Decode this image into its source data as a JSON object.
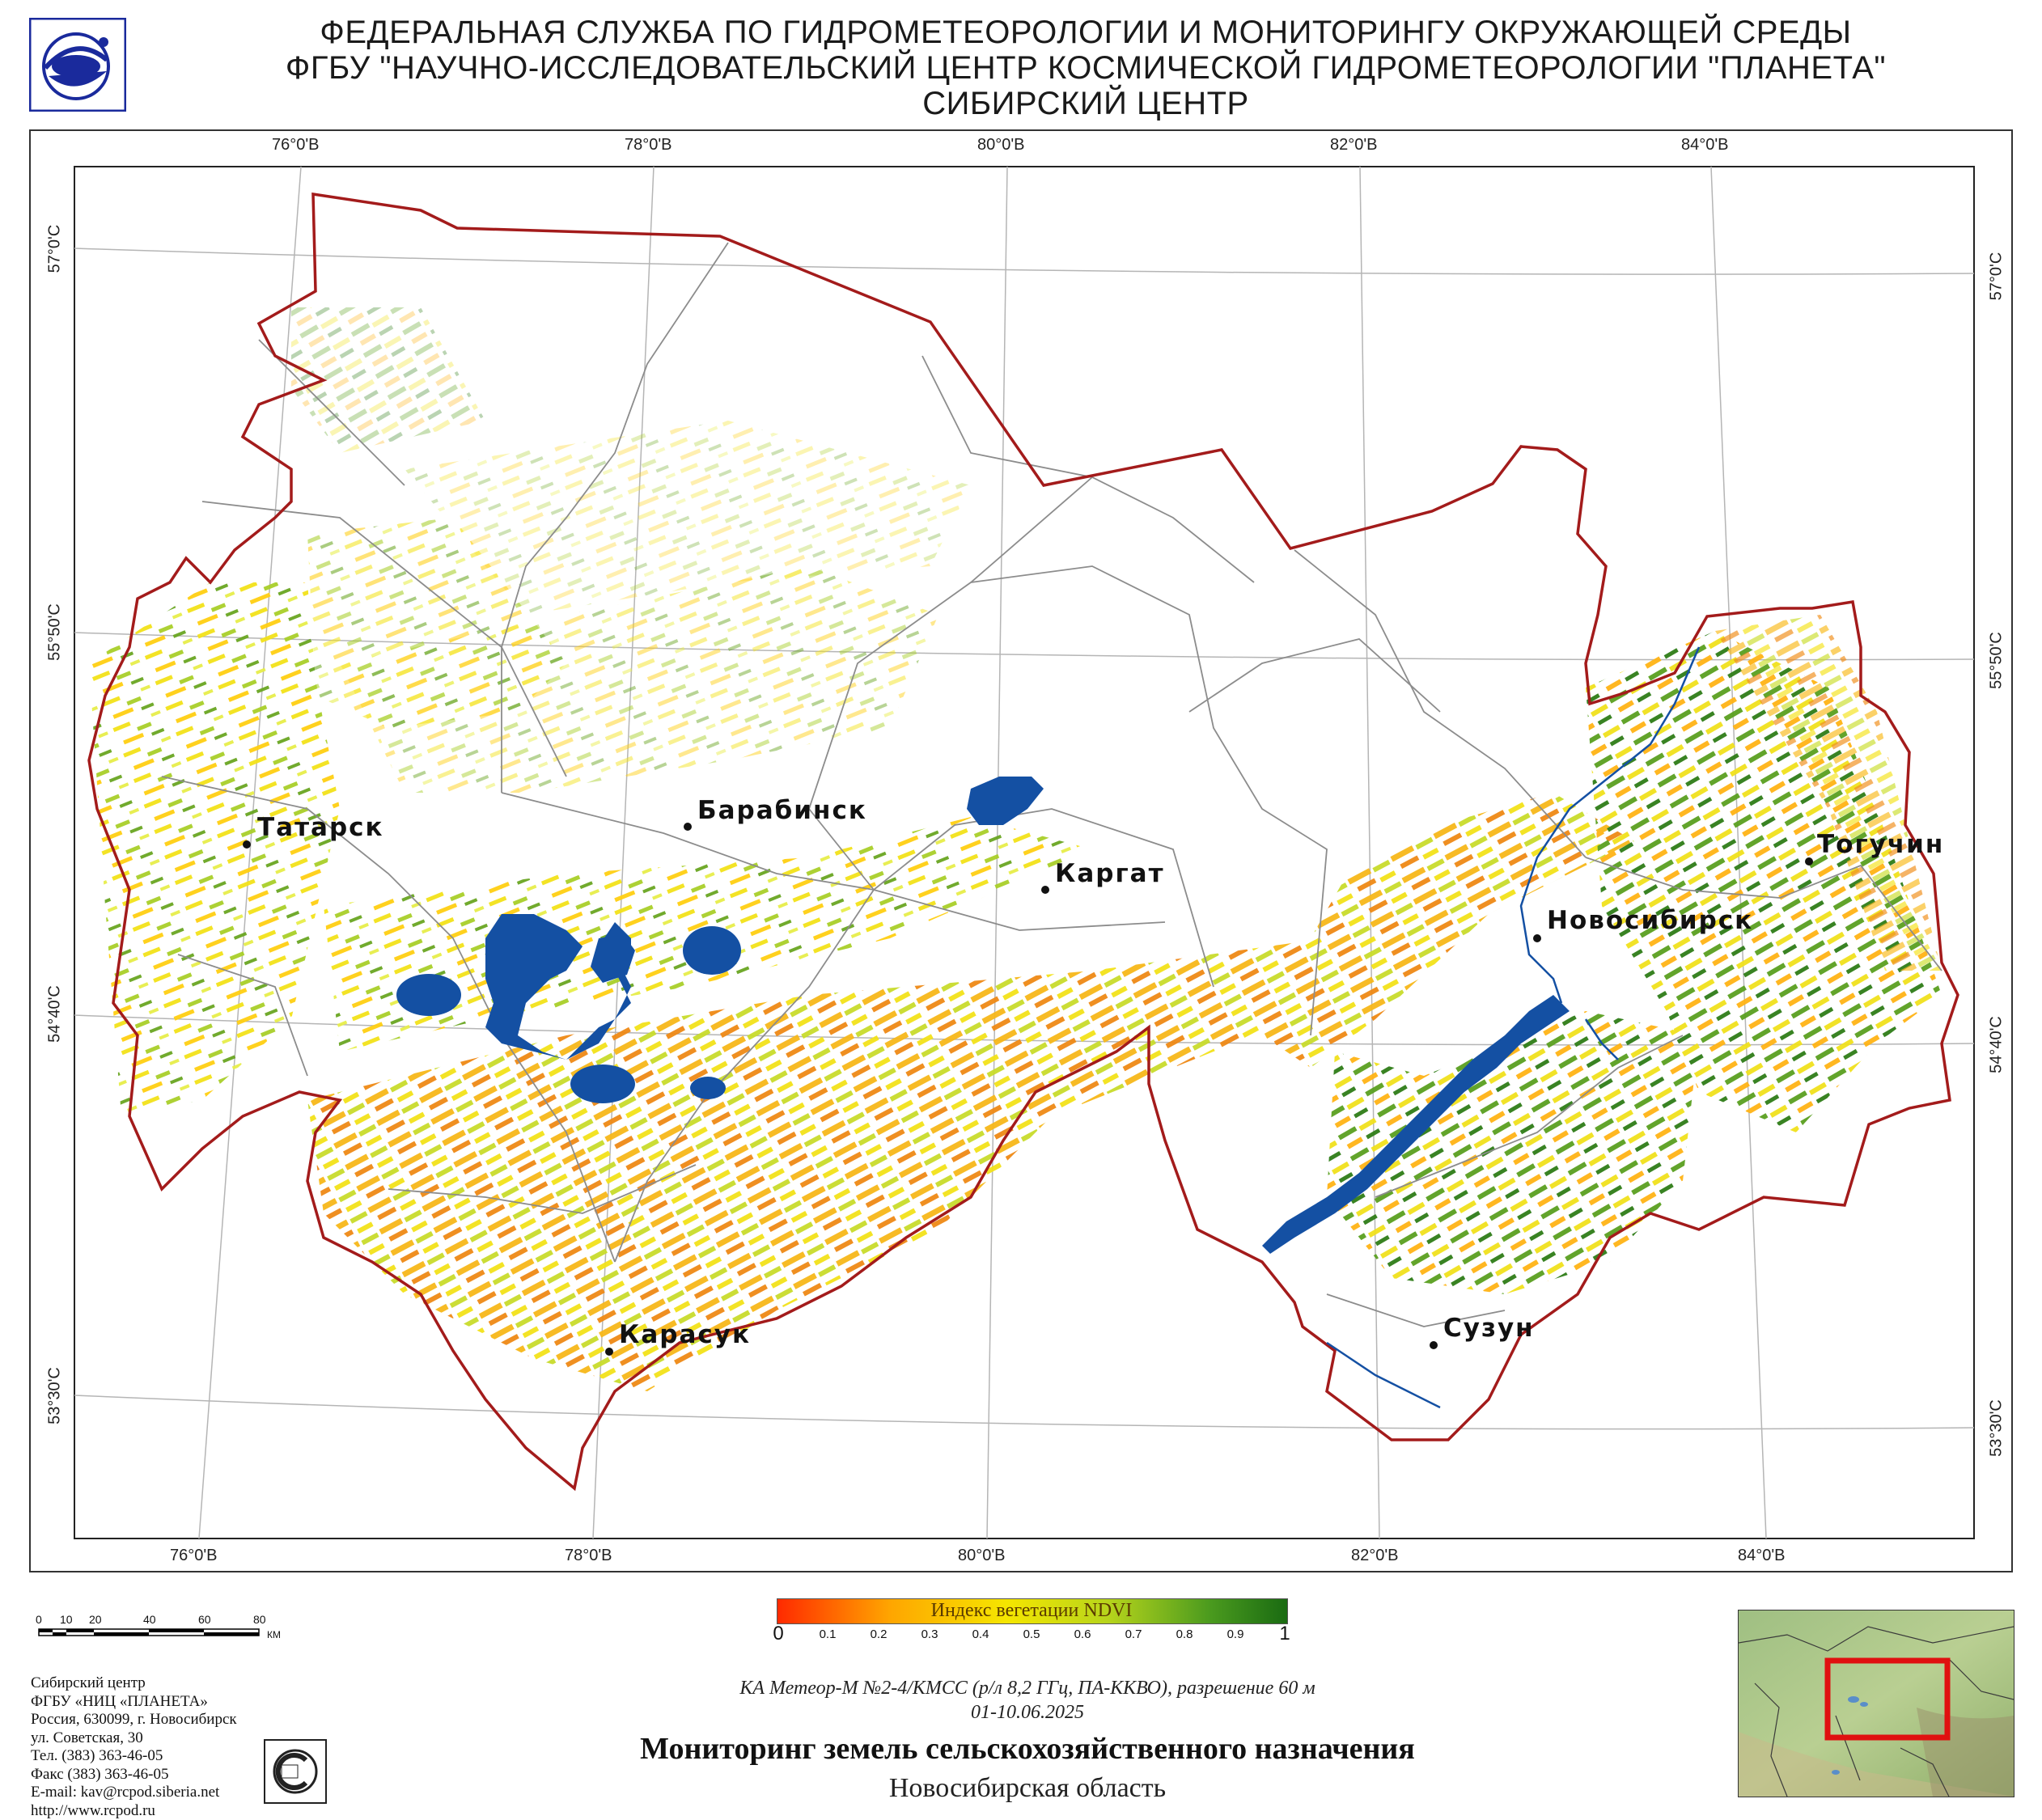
{
  "header": {
    "line1": "ФЕДЕРАЛЬНАЯ СЛУЖБА ПО ГИДРОМЕТЕОРОЛОГИИ И МОНИТОРИНГУ ОКРУЖАЮЩЕЙ СРЕДЫ",
    "line2": "ФГБУ \"НАУЧНО-ИССЛЕДОВАТЕЛЬСКИЙ ЦЕНТР КОСМИЧЕСКОЙ ГИДРОМЕТЕОРОЛОГИИ \"ПЛАНЕТА\"",
    "line3": "СИБИРСКИЙ ЦЕНТР"
  },
  "grid": {
    "top_labels": [
      "76°0'В",
      "78°0'В",
      "80°0'В",
      "82°0'В",
      "84°0'В"
    ],
    "bottom_labels": [
      "76°0'В",
      "78°0'В",
      "80°0'В",
      "82°0'В",
      "84°0'В"
    ],
    "left_labels": [
      "57°0'С",
      "55°50'С",
      "54°40'С",
      "53°30'С"
    ],
    "right_labels": [
      "57°0'С",
      "55°50'С",
      "54°40'С",
      "53°30'С"
    ]
  },
  "cities": {
    "tatarsk": "Татарск",
    "barabinsk": "Барабинск",
    "kargat": "Каргат",
    "novosibirsk": "Новосибирск",
    "toguchin": "Тогучин",
    "karasuk": "Карасук",
    "suzun": "Сузун"
  },
  "scale_bar": {
    "ticks": [
      "0",
      "10",
      "20",
      "40",
      "60",
      "80"
    ],
    "unit": "КМ"
  },
  "legend": {
    "title": "Индекс вегетации NDVI",
    "min": "0",
    "max": "1",
    "ticks": [
      "0.1",
      "0.2",
      "0.3",
      "0.4",
      "0.5",
      "0.6",
      "0.7",
      "0.8",
      "0.9"
    ],
    "colors": [
      "#ff2a00",
      "#ffa500",
      "#f5e600",
      "#b6d41c",
      "#4a9a1e",
      "#1a6b12"
    ]
  },
  "caption": {
    "satellite": "КА Метеор-М №2-4/КМСС (р/л 8,2 ГГц, ПА-ККВО), разрешение 60 м",
    "date": "01-10.06.2025",
    "title": "Мониторинг земель сельскохозяйственного назначения",
    "region": "Новосибирская область"
  },
  "contacts": {
    "lines": [
      "Сибирский центр",
      "ФГБУ «НИЦ «ПЛАНЕТА»",
      "Россия, 630099, г. Новосибирск",
      "ул. Советская, 30",
      "Тел. (383) 363-46-05",
      "Факс (383) 363-46-05",
      "E-mail: kav@rcpod.siberia.net",
      "http://www.rcpod.ru"
    ]
  },
  "colors": {
    "border": "#a31b1b",
    "water": "#1450a3",
    "district_lines": "#8c8c8c"
  }
}
